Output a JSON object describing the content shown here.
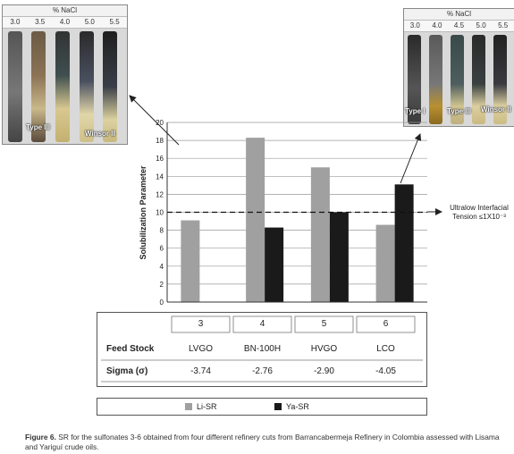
{
  "left_panel": {
    "header": "% NaCl",
    "concentrations": [
      "3.0",
      "3.5",
      "4.0",
      "5.0",
      "5.5"
    ],
    "labels": [
      "Type III",
      "Winsor II"
    ]
  },
  "right_panel": {
    "header": "% NaCl",
    "concentrations": [
      "3.0",
      "4.0",
      "4.5",
      "5.0",
      "5.5"
    ],
    "labels": [
      "Type I",
      "Type III",
      "Winsor II"
    ]
  },
  "annotation": {
    "line1": "Ultralow Interfacial",
    "line2": "Tension ≤1X10⁻³"
  },
  "table": {
    "row_header_feed": "Feed Stock",
    "row_header_sigma": "Sigma (σ)",
    "columns": [
      {
        "id": "3",
        "feed": "LVGO",
        "sigma": "-3.74"
      },
      {
        "id": "4",
        "feed": "BN-100H",
        "sigma": "-2.76"
      },
      {
        "id": "5",
        "feed": "HVGO",
        "sigma": "-2.90"
      },
      {
        "id": "6",
        "feed": "LCO",
        "sigma": "-4.05"
      }
    ]
  },
  "legend": {
    "li_label": "Li-SR",
    "ya_label": "Ya-SR",
    "li_color": "#a0a0a0",
    "ya_color": "#1a1a1a"
  },
  "caption": {
    "label": "Figure 6.",
    "text": " SR for the sulfonates 3-6 obtained from four different refinery cuts from Barrancabermeja Refinery in Colombia assessed with Lisama and Yariguí crude oils."
  },
  "chart_data": {
    "type": "bar",
    "categories": [
      "3",
      "4",
      "5",
      "6"
    ],
    "series": [
      {
        "name": "Li-SR",
        "values": [
          9.1,
          18.3,
          15.0,
          8.6
        ]
      },
      {
        "name": "Ya-SR",
        "values": [
          null,
          8.3,
          10.0,
          13.1
        ]
      }
    ],
    "ylabel": "Solubilization Parameter",
    "xlabel": "",
    "ylim": [
      0,
      20
    ],
    "yticks": [
      0,
      2,
      4,
      6,
      8,
      10,
      12,
      14,
      16,
      18,
      20
    ],
    "reference_line": 10,
    "grid": true,
    "legend": "bottom"
  }
}
